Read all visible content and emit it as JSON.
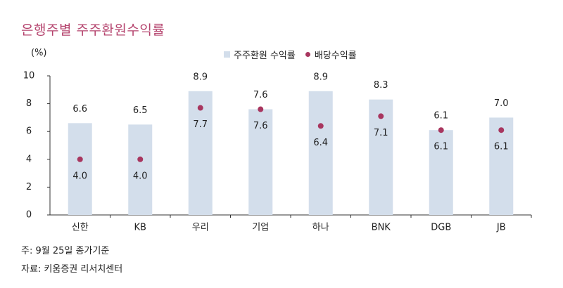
{
  "title": "은행주별 주주환원수익률",
  "unit_label": "(%)",
  "notes": [
    "주: 9월 25일 종가기준",
    "자료: 키움증권 리서치센터"
  ],
  "colors": {
    "bar": "#d3deeb",
    "dot": "#a8365f",
    "title": "#b5446e",
    "axis": "#333333"
  },
  "chart_data": {
    "type": "bar",
    "title": "은행주별 주주환원수익률",
    "categories": [
      "신한",
      "KB",
      "우리",
      "기업",
      "하나",
      "BNK",
      "DGB",
      "JB"
    ],
    "series": [
      {
        "name": "주주환원 수익률",
        "type": "bar",
        "values": [
          6.6,
          6.5,
          8.9,
          7.6,
          8.9,
          8.3,
          6.1,
          7.0
        ],
        "labels": [
          "6.6",
          "6.5",
          "8.9",
          "7.6",
          "8.9",
          "8.3",
          "6.1",
          "7.0"
        ]
      },
      {
        "name": "배당수익률",
        "type": "scatter",
        "values": [
          4.0,
          4.0,
          7.7,
          7.6,
          6.4,
          7.1,
          6.1,
          6.1
        ],
        "labels": [
          "4.0",
          "4.0",
          "7.7",
          "7.6",
          "6.4",
          "7.1",
          "6.1",
          "6.1"
        ]
      }
    ],
    "yticks": [
      "0",
      "2",
      "4",
      "6",
      "8",
      "10"
    ],
    "ylim": [
      0,
      10
    ],
    "grid": false,
    "legend_position": "top-center"
  }
}
